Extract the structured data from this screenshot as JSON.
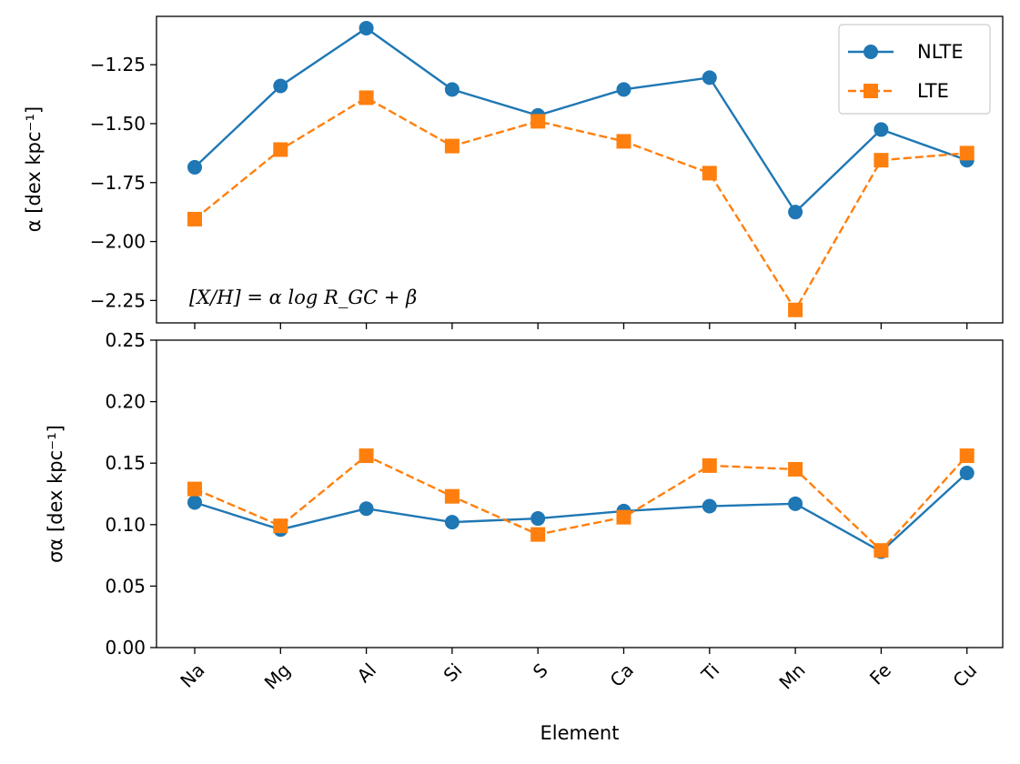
{
  "chart_data": [
    {
      "type": "line",
      "panel": "top",
      "categories": [
        "Na",
        "Mg",
        "Al",
        "Si",
        "S",
        "Ca",
        "Ti",
        "Mn",
        "Fe",
        "Cu"
      ],
      "series": [
        {
          "name": "NLTE",
          "color": "#1f77b4",
          "marker": "circle",
          "linestyle": "solid",
          "values": [
            -1.685,
            -1.34,
            -1.095,
            -1.355,
            -1.465,
            -1.355,
            -1.305,
            -1.875,
            -1.525,
            -1.655
          ]
        },
        {
          "name": "LTE",
          "color": "#ff7f0e",
          "marker": "square",
          "linestyle": "dashed",
          "values": [
            -1.905,
            -1.61,
            -1.39,
            -1.595,
            -1.49,
            -1.575,
            -1.71,
            -2.29,
            -1.655,
            -1.625
          ]
        }
      ],
      "ylabel": "α [dex kpc⁻¹]",
      "ylim": [
        -2.345,
        -1.045
      ],
      "yticks": [
        -2.25,
        -2.0,
        -1.75,
        -1.5,
        -1.25
      ],
      "ytick_labels": [
        "−2.25",
        "−2.00",
        "−1.75",
        "−1.50",
        "−1.25"
      ],
      "annotation": "[X/H] = α log R_GC + β",
      "legend": {
        "placement": "top-right",
        "entries": [
          "NLTE",
          "LTE"
        ]
      }
    },
    {
      "type": "line",
      "panel": "bottom",
      "categories": [
        "Na",
        "Mg",
        "Al",
        "Si",
        "S",
        "Ca",
        "Ti",
        "Mn",
        "Fe",
        "Cu"
      ],
      "series": [
        {
          "name": "NLTE",
          "color": "#1f77b4",
          "marker": "circle",
          "linestyle": "solid",
          "values": [
            0.118,
            0.096,
            0.113,
            0.102,
            0.105,
            0.111,
            0.115,
            0.117,
            0.078,
            0.142
          ]
        },
        {
          "name": "LTE",
          "color": "#ff7f0e",
          "marker": "square",
          "linestyle": "dashed",
          "values": [
            0.129,
            0.099,
            0.156,
            0.123,
            0.092,
            0.106,
            0.148,
            0.145,
            0.079,
            0.156
          ]
        }
      ],
      "xlabel": "Element",
      "ylabel": "σα [dex kpc⁻¹]",
      "ylim": [
        0.0,
        0.25
      ],
      "yticks": [
        0.0,
        0.05,
        0.1,
        0.15,
        0.2,
        0.25
      ],
      "ytick_labels": [
        "0.00",
        "0.05",
        "0.10",
        "0.15",
        "0.20",
        "0.25"
      ]
    }
  ]
}
